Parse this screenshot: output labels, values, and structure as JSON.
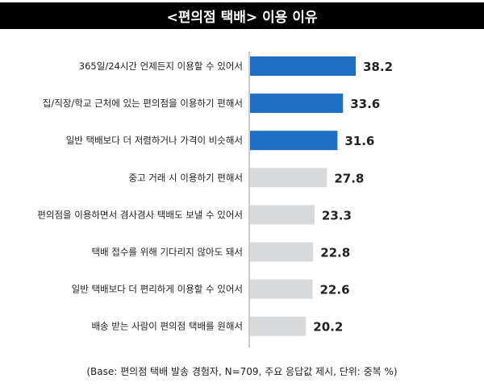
{
  "chart_data": {
    "type": "bar",
    "orientation": "horizontal",
    "title": "<편의점 택배> 이용 이유",
    "categories": [
      "365일/24시간 언제든지 이용할 수 있어서",
      "집/직장/학교 근처에 있는 편의점을 이용하기 편해서",
      "일반 택배보다 더 저렴하거나 가격이 비슷해서",
      "중고 거래 시 이용하기 편해서",
      "편의점을 이용하면서 겸사겸사 택배도 보낼 수 있어서",
      "택배 접수를 위해 기다리지 않아도 돼서",
      "일반 택배보다 더 편리하게 이용할 수 있어서",
      "배송 받는 사람이 편의점 택배를 원해서"
    ],
    "values": [
      38.2,
      33.6,
      31.6,
      27.8,
      23.3,
      22.8,
      22.6,
      20.2
    ],
    "labels": [
      "38.2",
      "33.6",
      "31.6",
      "27.8",
      "23.3",
      "22.8",
      "22.6",
      "20.2"
    ],
    "highlight_count": 3,
    "colors": {
      "highlight": "#1f6fc5",
      "normal": "#d9dadc",
      "axis": "#999999"
    },
    "xlim": [
      0,
      40
    ],
    "grid": false,
    "note": "(Base: 편의점 택배 발송 경험자, N=709, 주요 응답값 제시, 단위: 중복 %)"
  }
}
